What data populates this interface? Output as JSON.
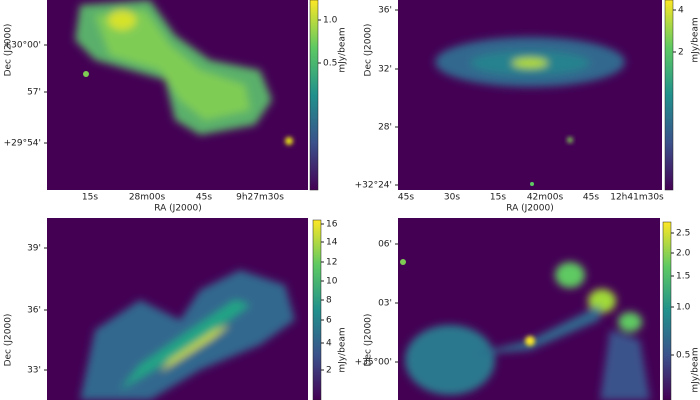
{
  "panels": [
    {
      "y_label": "Dec (J2000)",
      "y_ticks": [
        "+30°00'",
        "57'",
        "+29°54'"
      ],
      "x_label": "RA (J2000)",
      "x_ticks": [
        "15s",
        "28m00s",
        "45s",
        "9h27m30s"
      ],
      "colorbar_label": "mJy/beam",
      "colorbar_ticks": [
        "1.0",
        "0.5"
      ]
    },
    {
      "y_label": "Dec (J2000)",
      "y_ticks": [
        "36'",
        "32'",
        "28'",
        "+32°24'"
      ],
      "x_label": "RA (J2000)",
      "x_ticks": [
        "45s",
        "30s",
        "15s",
        "42m00s",
        "45s",
        "12h41m30s"
      ],
      "colorbar_label": "mJy/beam",
      "colorbar_ticks": [
        "4",
        "2"
      ]
    },
    {
      "y_label": "Dec (J2000)",
      "y_ticks": [
        "39'",
        "36'",
        "33'"
      ],
      "colorbar_label": "mJy/beam",
      "colorbar_ticks": [
        "16",
        "14",
        "12",
        "10",
        "8",
        "6",
        "4",
        "2"
      ]
    },
    {
      "y_label": "Dec (J2000)",
      "y_ticks": [
        "06'",
        "03'",
        "+35°00'"
      ],
      "colorbar_label": "mJy/beam",
      "colorbar_ticks": [
        "2.5",
        "2.0",
        "1.5",
        "1.0",
        "0.5"
      ]
    }
  ]
}
